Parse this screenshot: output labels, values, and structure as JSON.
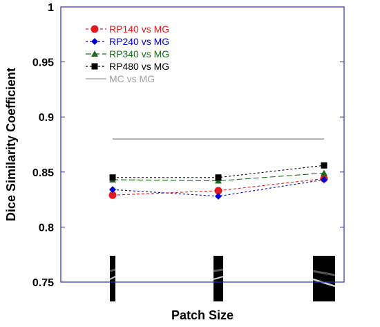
{
  "chart_data": {
    "type": "line",
    "title": "",
    "xlabel": "Patch Size",
    "ylabel": "Dice Similarity Coefficient",
    "ylim": [
      0.75,
      1.0
    ],
    "yticks": [
      0.75,
      0.8,
      0.85,
      0.9,
      0.95,
      1.0
    ],
    "ytick_labels": [
      "0.75",
      "0.8",
      "0.85",
      "0.9",
      "0.95",
      "1"
    ],
    "categories": [
      "",
      "",
      ""
    ],
    "legend_position": "top-left",
    "grid": false,
    "series": [
      {
        "name": "RP140 vs MG",
        "color": "#e41a1c",
        "marker": "circle",
        "dash": "4,3",
        "values": [
          0.829,
          0.833,
          0.844
        ]
      },
      {
        "name": "RP240 vs MG",
        "color": "#0000cc",
        "marker": "diamond",
        "dash": "3,3",
        "values": [
          0.834,
          0.828,
          0.843
        ]
      },
      {
        "name": "RP340 vs MG",
        "color": "#1a6b1a",
        "marker": "triangle",
        "dash": "8,4",
        "values": [
          0.843,
          0.842,
          0.849
        ]
      },
      {
        "name": "RP480 vs MG",
        "color": "#000000",
        "marker": "square",
        "dash": "3,3",
        "values": [
          0.845,
          0.845,
          0.856
        ]
      },
      {
        "name": "MC vs MG",
        "color": "#a0a0a0",
        "marker": "none",
        "dash": "",
        "values": [
          0.88,
          0.88,
          0.88
        ]
      }
    ]
  }
}
